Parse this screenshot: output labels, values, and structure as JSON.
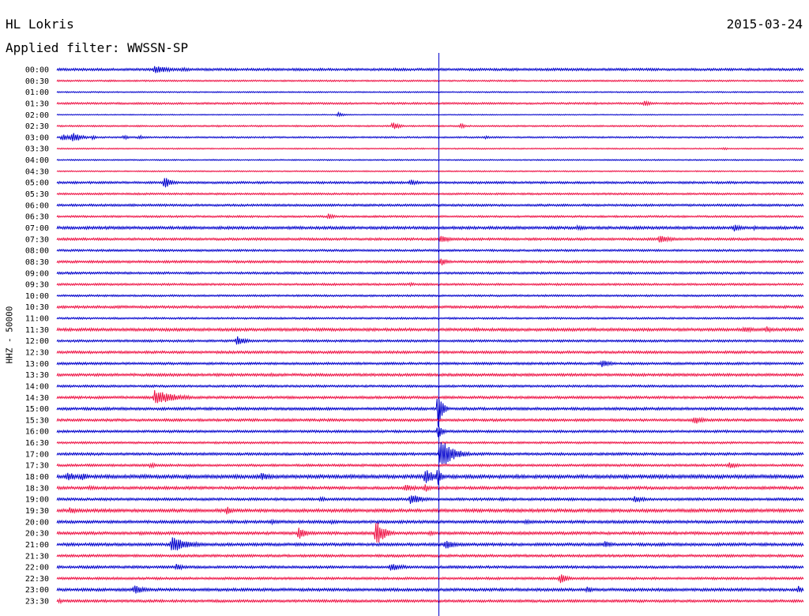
{
  "header": {
    "station": "HL Lokris",
    "date": "2015-03-24",
    "filter": "Applied filter: WWSSN-SP"
  },
  "chart_data": {
    "type": "line",
    "title": "HL Lokris",
    "subtitle": "Applied filter: WWSSN-SP",
    "date": "2015-03-24",
    "ylabel": "HHZ - 50000",
    "xlabel": "",
    "x_units": "minutes into each 30-minute row",
    "x_range": [
      0,
      30
    ],
    "grid": false,
    "legend": "none",
    "colors": {
      "even_row": "#0000cc",
      "odd_row": "#ee1144",
      "marker": "#0000cc"
    },
    "marker_line_minute": 15.35,
    "rows": [
      "00:00",
      "00:30",
      "01:00",
      "01:30",
      "02:00",
      "02:30",
      "03:00",
      "03:30",
      "04:00",
      "04:30",
      "05:00",
      "05:30",
      "06:00",
      "06:30",
      "07:00",
      "07:30",
      "08:00",
      "08:30",
      "09:00",
      "09:30",
      "10:00",
      "10:30",
      "11:00",
      "11:30",
      "12:00",
      "12:30",
      "13:00",
      "13:30",
      "14:00",
      "14:30",
      "15:00",
      "15:30",
      "16:00",
      "16:30",
      "17:00",
      "17:30",
      "18:00",
      "18:30",
      "19:00",
      "19:30",
      "20:00",
      "20:30",
      "21:00",
      "21:30",
      "22:00",
      "22:30",
      "23:00",
      "23:30"
    ],
    "noise_level": [
      1.5,
      1,
      0.8,
      1.2,
      0.6,
      1,
      1,
      0.8,
      0.8,
      0.8,
      1.4,
      1.2,
      1.4,
      1.2,
      1.8,
      1.5,
      1.3,
      1.5,
      1.4,
      1.3,
      1.2,
      1.6,
      1.2,
      1.8,
      1.4,
      1.6,
      1.5,
      1.7,
      1.4,
      1.6,
      1.7,
      1.6,
      1.5,
      1.3,
      1.6,
      1.5,
      2.2,
      1.8,
      1.6,
      2,
      1.8,
      1.8,
      1.8,
      1.6,
      1.6,
      1.5,
      1.8,
      1.6
    ],
    "events": [
      {
        "row": "00:00",
        "minute": 3.9,
        "amp": 5,
        "dur": 1.8
      },
      {
        "row": "00:00",
        "minute": 5.0,
        "amp": 3,
        "dur": 1.2
      },
      {
        "row": "00:00",
        "minute": 13.6,
        "amp": 2,
        "dur": 0.4
      },
      {
        "row": "01:30",
        "minute": 21.6,
        "amp": 2,
        "dur": 0.4
      },
      {
        "row": "01:30",
        "minute": 23.6,
        "amp": 4,
        "dur": 0.6
      },
      {
        "row": "02:00",
        "minute": 11.3,
        "amp": 3,
        "dur": 0.6
      },
      {
        "row": "02:30",
        "minute": 6.4,
        "amp": 1.8,
        "dur": 0.6
      },
      {
        "row": "02:30",
        "minute": 13.5,
        "amp": 6,
        "dur": 0.6
      },
      {
        "row": "02:30",
        "minute": 16.2,
        "amp": 4,
        "dur": 0.5
      },
      {
        "row": "03:00",
        "minute": 0.2,
        "amp": 4,
        "dur": 1.2
      },
      {
        "row": "03:00",
        "minute": 0.6,
        "amp": 8,
        "dur": 0.8
      },
      {
        "row": "03:00",
        "minute": 1.4,
        "amp": 3,
        "dur": 0.5
      },
      {
        "row": "03:00",
        "minute": 2.7,
        "amp": 3,
        "dur": 0.5
      },
      {
        "row": "03:00",
        "minute": 3.3,
        "amp": 3,
        "dur": 0.6
      },
      {
        "row": "03:00",
        "minute": 17.2,
        "amp": 2,
        "dur": 0.8
      },
      {
        "row": "03:30",
        "minute": 26.8,
        "amp": 2,
        "dur": 0.5
      },
      {
        "row": "05:00",
        "minute": 4.3,
        "amp": 8,
        "dur": 0.7
      },
      {
        "row": "05:00",
        "minute": 14.2,
        "amp": 4,
        "dur": 0.9
      },
      {
        "row": "06:30",
        "minute": 10.9,
        "amp": 4,
        "dur": 0.6
      },
      {
        "row": "07:00",
        "minute": 20.9,
        "amp": 3,
        "dur": 1.5
      },
      {
        "row": "07:00",
        "minute": 27.2,
        "amp": 5,
        "dur": 0.8
      },
      {
        "row": "07:00",
        "minute": 28.0,
        "amp": 3,
        "dur": 0.5
      },
      {
        "row": "07:30",
        "minute": 15.4,
        "amp": 7,
        "dur": 0.8
      },
      {
        "row": "07:30",
        "minute": 24.2,
        "amp": 6,
        "dur": 1.2
      },
      {
        "row": "08:30",
        "minute": 15.4,
        "amp": 6,
        "dur": 0.6
      },
      {
        "row": "09:30",
        "minute": 14.2,
        "amp": 3,
        "dur": 0.5
      },
      {
        "row": "11:30",
        "minute": 27.6,
        "amp": 4,
        "dur": 1.4
      },
      {
        "row": "11:30",
        "minute": 28.5,
        "amp": 5,
        "dur": 0.5
      },
      {
        "row": "12:00",
        "minute": 7.2,
        "amp": 7,
        "dur": 0.9
      },
      {
        "row": "13:00",
        "minute": 21.9,
        "amp": 5,
        "dur": 0.9
      },
      {
        "row": "13:30",
        "minute": 8.6,
        "amp": 2.5,
        "dur": 0.8
      },
      {
        "row": "14:30",
        "minute": 3.9,
        "amp": 10,
        "dur": 2.0
      },
      {
        "row": "15:00",
        "minute": 15.3,
        "amp": 26,
        "dur": 0.4
      },
      {
        "row": "15:30",
        "minute": 25.6,
        "amp": 6,
        "dur": 0.8
      },
      {
        "row": "16:00",
        "minute": 15.3,
        "amp": 12,
        "dur": 0.4
      },
      {
        "row": "17:00",
        "minute": 15.4,
        "amp": 20,
        "dur": 1.2
      },
      {
        "row": "17:00",
        "minute": 16.4,
        "amp": 3,
        "dur": 0.4
      },
      {
        "row": "17:30",
        "minute": 3.7,
        "amp": 3,
        "dur": 1.5
      },
      {
        "row": "17:30",
        "minute": 27.0,
        "amp": 4,
        "dur": 1.0
      },
      {
        "row": "18:00",
        "minute": 0.4,
        "amp": 6,
        "dur": 1.2
      },
      {
        "row": "18:00",
        "minute": 1.0,
        "amp": 6,
        "dur": 0.6
      },
      {
        "row": "18:00",
        "minute": 3.5,
        "amp": 3,
        "dur": 0.7
      },
      {
        "row": "18:00",
        "minute": 5.2,
        "amp": 4,
        "dur": 0.6
      },
      {
        "row": "18:00",
        "minute": 8.2,
        "amp": 5,
        "dur": 1.2
      },
      {
        "row": "18:00",
        "minute": 14.8,
        "amp": 10,
        "dur": 1.0
      },
      {
        "row": "18:00",
        "minute": 15.3,
        "amp": 14,
        "dur": 0.3
      },
      {
        "row": "18:00",
        "minute": 24.2,
        "amp": 3,
        "dur": 0.8
      },
      {
        "row": "18:30",
        "minute": 1.3,
        "amp": 3,
        "dur": 1.0
      },
      {
        "row": "18:30",
        "minute": 14.0,
        "amp": 5,
        "dur": 1.2
      },
      {
        "row": "18:30",
        "minute": 14.8,
        "amp": 6,
        "dur": 0.5
      },
      {
        "row": "19:00",
        "minute": 10.6,
        "amp": 4,
        "dur": 0.5
      },
      {
        "row": "19:00",
        "minute": 14.2,
        "amp": 7,
        "dur": 1.2
      },
      {
        "row": "19:00",
        "minute": 17.8,
        "amp": 3,
        "dur": 0.6
      },
      {
        "row": "19:00",
        "minute": 23.2,
        "amp": 5,
        "dur": 1.0
      },
      {
        "row": "19:30",
        "minute": 0.5,
        "amp": 4,
        "dur": 1.3
      },
      {
        "row": "19:30",
        "minute": 6.8,
        "amp": 6,
        "dur": 0.7
      },
      {
        "row": "20:00",
        "minute": 8.6,
        "amp": 3,
        "dur": 1.4
      },
      {
        "row": "20:00",
        "minute": 11.0,
        "amp": 3,
        "dur": 1.0
      },
      {
        "row": "20:00",
        "minute": 18.8,
        "amp": 3,
        "dur": 1.2
      },
      {
        "row": "20:30",
        "minute": 3.3,
        "amp": 2.5,
        "dur": 1.5
      },
      {
        "row": "20:30",
        "minute": 9.7,
        "amp": 9,
        "dur": 0.7
      },
      {
        "row": "20:30",
        "minute": 12.8,
        "amp": 18,
        "dur": 0.8
      },
      {
        "row": "20:30",
        "minute": 15.0,
        "amp": 4,
        "dur": 0.5
      },
      {
        "row": "21:00",
        "minute": 4.6,
        "amp": 10,
        "dur": 1.8
      },
      {
        "row": "21:00",
        "minute": 15.6,
        "amp": 7,
        "dur": 0.9
      },
      {
        "row": "21:00",
        "minute": 22.0,
        "amp": 5,
        "dur": 0.8
      },
      {
        "row": "21:30",
        "minute": 4.2,
        "amp": 2,
        "dur": 0.5
      },
      {
        "row": "22:00",
        "minute": 4.8,
        "amp": 4,
        "dur": 1.0
      },
      {
        "row": "22:00",
        "minute": 13.4,
        "amp": 5,
        "dur": 1.5
      },
      {
        "row": "22:30",
        "minute": 20.2,
        "amp": 7,
        "dur": 0.8
      },
      {
        "row": "23:00",
        "minute": 3.1,
        "amp": 6,
        "dur": 1.0
      },
      {
        "row": "23:00",
        "minute": 21.3,
        "amp": 5,
        "dur": 0.6
      },
      {
        "row": "23:00",
        "minute": 29.8,
        "amp": 5,
        "dur": 0.4
      },
      {
        "row": "23:30",
        "minute": 0.1,
        "amp": 4,
        "dur": 0.3
      }
    ]
  }
}
